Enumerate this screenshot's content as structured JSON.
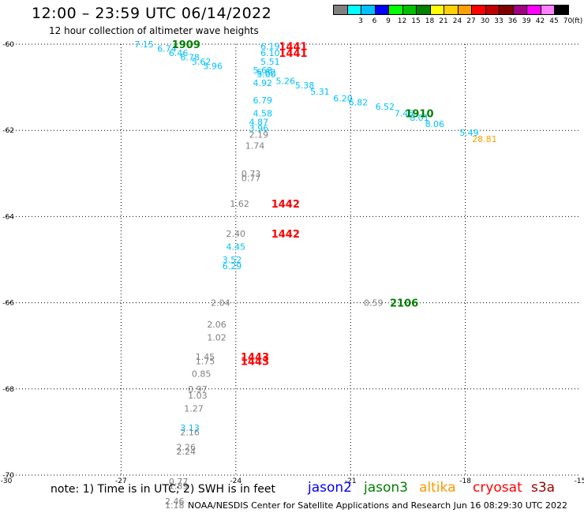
{
  "header": {
    "title": "12:00 – 23:59 UTC 06/14/2022",
    "subtitle": "12 hour collection of altimeter wave heights"
  },
  "footer": {
    "note": "note:  1) Time is in UTC;  2) SWH is in feet",
    "credit": "NOAA/NESDIS Center for Satellite Applications and Research     Jun 16 08:29:30 UTC 2022"
  },
  "legend": {
    "satellites": [
      {
        "name": "jason2",
        "color": "#0000ff"
      },
      {
        "name": "jason3",
        "color": "#008000"
      },
      {
        "name": "altika",
        "color": "#ff9900"
      },
      {
        "name": "cryosat",
        "color": "#ff0000"
      },
      {
        "name": "s3a",
        "color": "#990000"
      }
    ],
    "scale_unit": "(ft)",
    "scale": [
      {
        "label": "",
        "color": "#808080"
      },
      {
        "label": "3",
        "color": "#00ffff"
      },
      {
        "label": "6",
        "color": "#00c0ff"
      },
      {
        "label": "9",
        "color": "#0000ff"
      },
      {
        "label": "12",
        "color": "#00ff00"
      },
      {
        "label": "15",
        "color": "#00c000"
      },
      {
        "label": "18",
        "color": "#008000"
      },
      {
        "label": "21",
        "color": "#ffff00"
      },
      {
        "label": "24",
        "color": "#ffd000"
      },
      {
        "label": "27",
        "color": "#ffa000"
      },
      {
        "label": "30",
        "color": "#ff0000"
      },
      {
        "label": "33",
        "color": "#c00000"
      },
      {
        "label": "36",
        "color": "#800000"
      },
      {
        "label": "39",
        "color": "#a00080"
      },
      {
        "label": "42",
        "color": "#ff00ff"
      },
      {
        "label": "45",
        "color": "#ff80ff"
      },
      {
        "label": "70",
        "color": "#000000"
      }
    ]
  },
  "chart_data": {
    "type": "scatter",
    "title": "12:00 – 23:59 UTC 06/14/2022",
    "subtitle": "12 hour collection of altimeter wave heights",
    "xlim": [
      -30,
      -15
    ],
    "ylim": [
      -70,
      -60
    ],
    "grid": true,
    "x_ticks": [
      {
        "v": -30,
        "label": "-30"
      },
      {
        "v": -27,
        "label": "-27"
      },
      {
        "v": -24,
        "label": "-24"
      },
      {
        "v": -21,
        "label": "-21"
      },
      {
        "v": -18,
        "label": "-18"
      },
      {
        "v": -15,
        "label": "-15"
      }
    ],
    "y_ticks": [
      {
        "v": -60,
        "label": "-60"
      },
      {
        "v": -62,
        "label": "-62"
      },
      {
        "v": -64,
        "label": "-64"
      },
      {
        "v": -66,
        "label": "-66"
      },
      {
        "v": -68,
        "label": "-68"
      },
      {
        "v": -70,
        "label": "-70"
      }
    ],
    "swh_points": [
      {
        "lon": -26.4,
        "lat": -60.0,
        "value": "7.15",
        "color": "#00c0ff"
      },
      {
        "lon": -25.8,
        "lat": -60.1,
        "value": "6.74",
        "color": "#00c0ff"
      },
      {
        "lon": -25.5,
        "lat": -60.2,
        "value": "6.46",
        "color": "#00c0ff"
      },
      {
        "lon": -25.2,
        "lat": -60.3,
        "value": "6.78",
        "color": "#00c0ff"
      },
      {
        "lon": -24.9,
        "lat": -60.4,
        "value": "5.62",
        "color": "#00c0ff"
      },
      {
        "lon": -24.6,
        "lat": -60.5,
        "value": "5.96",
        "color": "#00c0ff"
      },
      {
        "lon": -23.1,
        "lat": -60.05,
        "value": "6.19",
        "color": "#00c0ff"
      },
      {
        "lon": -23.1,
        "lat": -60.2,
        "value": "6.10",
        "color": "#00c0ff"
      },
      {
        "lon": -23.1,
        "lat": -60.4,
        "value": "5.51",
        "color": "#00c0ff"
      },
      {
        "lon": -23.3,
        "lat": -60.6,
        "value": "5.68",
        "color": "#00c0ff"
      },
      {
        "lon": -23.2,
        "lat": -60.65,
        "value": "5.82",
        "color": "#00c0ff"
      },
      {
        "lon": -23.2,
        "lat": -60.7,
        "value": "5.00",
        "color": "#00c0ff"
      },
      {
        "lon": -23.3,
        "lat": -60.9,
        "value": "4.92",
        "color": "#00c0ff"
      },
      {
        "lon": -22.7,
        "lat": -60.85,
        "value": "5.26",
        "color": "#00c0ff"
      },
      {
        "lon": -22.2,
        "lat": -60.95,
        "value": "5.38",
        "color": "#00c0ff"
      },
      {
        "lon": -21.8,
        "lat": -61.1,
        "value": "5.31",
        "color": "#00c0ff"
      },
      {
        "lon": -21.2,
        "lat": -61.25,
        "value": "6.20",
        "color": "#00c0ff"
      },
      {
        "lon": -20.8,
        "lat": -61.35,
        "value": "6.82",
        "color": "#00c0ff"
      },
      {
        "lon": -20.1,
        "lat": -61.45,
        "value": "6.52",
        "color": "#00c0ff"
      },
      {
        "lon": -19.6,
        "lat": -61.6,
        "value": "7.46",
        "color": "#00c0ff"
      },
      {
        "lon": -19.2,
        "lat": -61.7,
        "value": "8.01",
        "color": "#00c0ff"
      },
      {
        "lon": -18.8,
        "lat": -61.85,
        "value": "8.06",
        "color": "#00c0ff"
      },
      {
        "lon": -17.9,
        "lat": -62.05,
        "value": "5.49",
        "color": "#00c0ff"
      },
      {
        "lon": -23.3,
        "lat": -61.3,
        "value": "6.79",
        "color": "#00c0ff"
      },
      {
        "lon": -23.3,
        "lat": -61.6,
        "value": "4.58",
        "color": "#00c0ff"
      },
      {
        "lon": -23.4,
        "lat": -61.8,
        "value": "4.87",
        "color": "#00c0ff"
      },
      {
        "lon": -23.4,
        "lat": -61.95,
        "value": "3.96",
        "color": "#00c0ff"
      },
      {
        "lon": -23.4,
        "lat": -62.1,
        "value": "2.19",
        "color": "#808080"
      },
      {
        "lon": -23.5,
        "lat": -62.35,
        "value": "1.74",
        "color": "#808080"
      },
      {
        "lon": -23.6,
        "lat": -63.0,
        "value": "0.73",
        "color": "#808080"
      },
      {
        "lon": -23.6,
        "lat": -63.1,
        "value": "0.77",
        "color": "#808080"
      },
      {
        "lon": -23.9,
        "lat": -63.7,
        "value": "1.62",
        "color": "#808080"
      },
      {
        "lon": -24.0,
        "lat": -64.4,
        "value": "2.40",
        "color": "#808080"
      },
      {
        "lon": -24.0,
        "lat": -64.7,
        "value": "4.45",
        "color": "#00c0ff"
      },
      {
        "lon": -24.1,
        "lat": -65.0,
        "value": "3.52",
        "color": "#00c0ff"
      },
      {
        "lon": -24.1,
        "lat": -65.15,
        "value": "6.29",
        "color": "#00c0ff"
      },
      {
        "lon": -24.4,
        "lat": -66.0,
        "value": "2.04",
        "color": "#808080"
      },
      {
        "lon": -24.5,
        "lat": -66.5,
        "value": "2.06",
        "color": "#808080"
      },
      {
        "lon": -24.5,
        "lat": -66.8,
        "value": "1.02",
        "color": "#808080"
      },
      {
        "lon": -24.8,
        "lat": -67.25,
        "value": "1.45",
        "color": "#808080"
      },
      {
        "lon": -24.8,
        "lat": -67.35,
        "value": "1.75",
        "color": "#808080"
      },
      {
        "lon": -24.9,
        "lat": -67.65,
        "value": "0.85",
        "color": "#808080"
      },
      {
        "lon": -25.0,
        "lat": -68.0,
        "value": "0.97",
        "color": "#808080"
      },
      {
        "lon": -25.0,
        "lat": -68.15,
        "value": "1.03",
        "color": "#808080"
      },
      {
        "lon": -25.1,
        "lat": -68.45,
        "value": "1.27",
        "color": "#808080"
      },
      {
        "lon": -25.2,
        "lat": -68.9,
        "value": "3.13",
        "color": "#00c0ff"
      },
      {
        "lon": -25.2,
        "lat": -69.0,
        "value": "2.16",
        "color": "#808080"
      },
      {
        "lon": -25.3,
        "lat": -69.35,
        "value": "2.26",
        "color": "#808080"
      },
      {
        "lon": -25.3,
        "lat": -69.45,
        "value": "2.24",
        "color": "#808080"
      },
      {
        "lon": -25.5,
        "lat": -70.15,
        "value": "0.77",
        "color": "#808080"
      },
      {
        "lon": -25.5,
        "lat": -70.25,
        "value": "1.89",
        "color": "#808080"
      },
      {
        "lon": -25.6,
        "lat": -70.6,
        "value": "2.46",
        "color": "#808080"
      },
      {
        "lon": -25.6,
        "lat": -70.7,
        "value": "1.18",
        "color": "#808080"
      },
      {
        "lon": -20.4,
        "lat": -66.0,
        "value": "0.59",
        "color": "#808080"
      },
      {
        "lon": -17.5,
        "lat": -62.2,
        "value": "28.81",
        "color": "#ffa000"
      }
    ],
    "time_labels": [
      {
        "lon": -25.3,
        "lat": -60.0,
        "value": "1909",
        "color": "#008000"
      },
      {
        "lon": -22.5,
        "lat": -60.05,
        "value": "1441",
        "color": "#ff0000"
      },
      {
        "lon": -22.5,
        "lat": -60.2,
        "value": "1441",
        "color": "#ff0000"
      },
      {
        "lon": -19.2,
        "lat": -61.6,
        "value": "1910",
        "color": "#008000"
      },
      {
        "lon": -22.7,
        "lat": -63.7,
        "value": "1442",
        "color": "#ff0000"
      },
      {
        "lon": -22.7,
        "lat": -64.4,
        "value": "1442",
        "color": "#ff0000"
      },
      {
        "lon": -19.6,
        "lat": -66.0,
        "value": "2106",
        "color": "#008000"
      },
      {
        "lon": -23.5,
        "lat": -67.25,
        "value": "1443",
        "color": "#ff0000"
      },
      {
        "lon": -23.5,
        "lat": -67.35,
        "value": "1443",
        "color": "#ff0000"
      }
    ]
  }
}
